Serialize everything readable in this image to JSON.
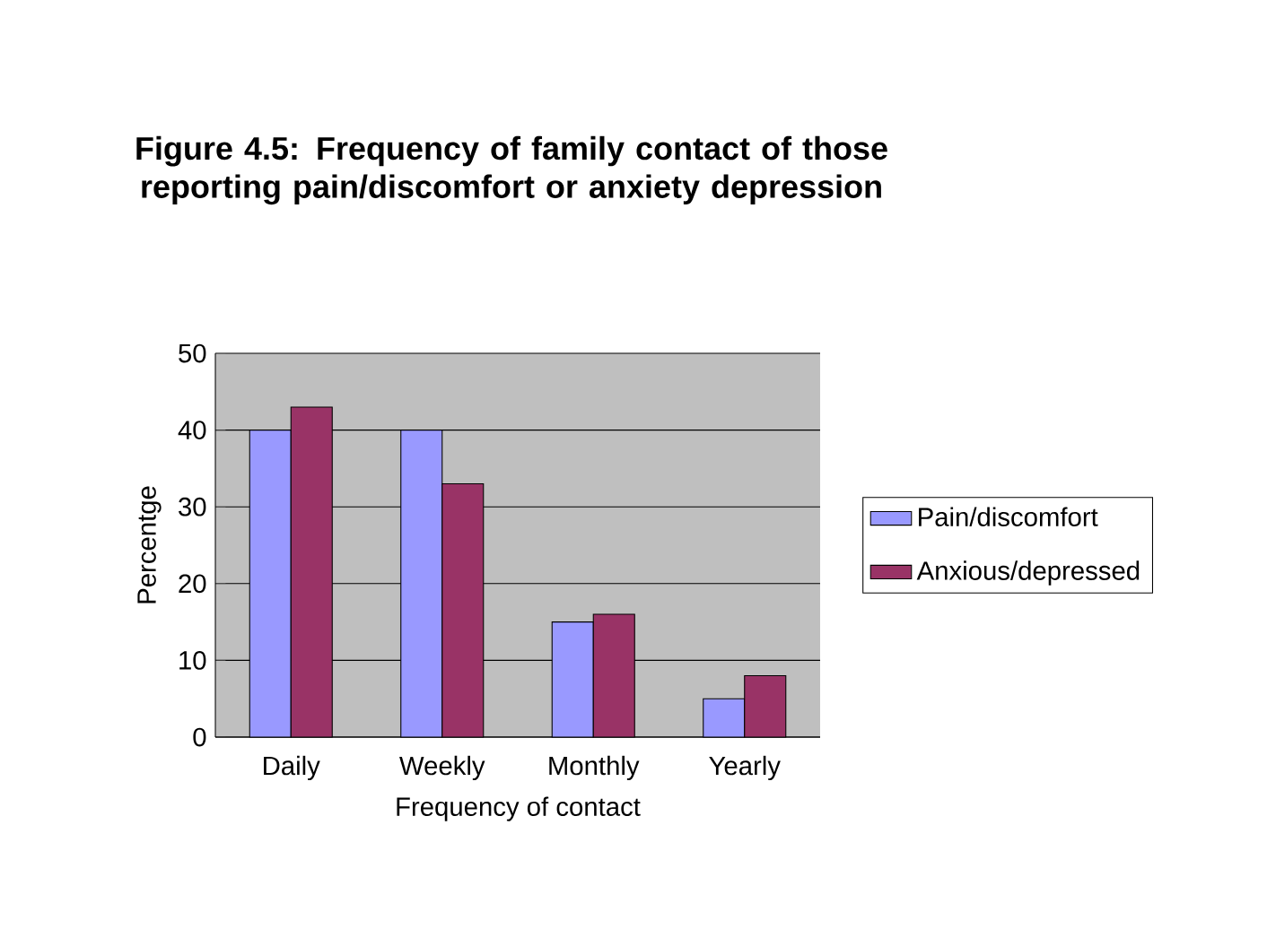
{
  "chart_data": {
    "type": "bar",
    "title": "Figure 4.5: Frequency of family contact of those reporting pain/discomfort or anxiety depression",
    "xlabel": "Frequency of contact",
    "ylabel": "Percentge",
    "categories": [
      "Daily",
      "Weekly",
      "Monthly",
      "Yearly"
    ],
    "series": [
      {
        "name": "Pain/discomfort",
        "color": "#9999ff",
        "values": [
          40,
          40,
          15,
          5
        ]
      },
      {
        "name": "Anxious/depressed",
        "color": "#993366",
        "values": [
          43,
          33,
          16,
          8
        ]
      }
    ],
    "ylim": [
      0,
      50
    ],
    "yticks": [
      0,
      10,
      20,
      30,
      40,
      50
    ],
    "grid": "y",
    "legend": "right"
  }
}
